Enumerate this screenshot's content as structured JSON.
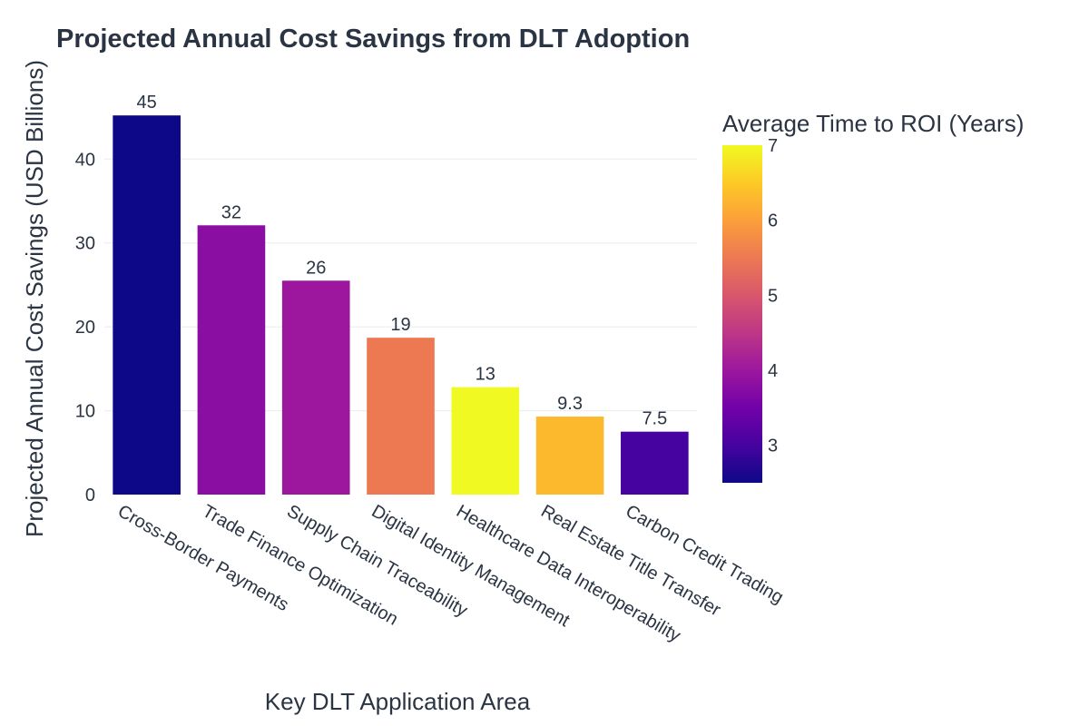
{
  "chart_data": {
    "type": "bar",
    "title": "Projected Annual Cost Savings from DLT Adoption",
    "xlabel": "Key DLT Application Area",
    "ylabel": "Projected Annual Cost Savings (USD Billions)",
    "categories": [
      "Cross-Border Payments",
      "Trade Finance Optimization",
      "Supply Chain Traceability",
      "Digital Identity Management",
      "Healthcare Data Interoperability",
      "Real Estate Title Transfer",
      "Carbon Credit Trading"
    ],
    "values": [
      45.2,
      32.1,
      25.5,
      18.7,
      12.8,
      9.3,
      7.5
    ],
    "value_labels": [
      "45",
      "32",
      "26",
      "19",
      "13",
      "9.3",
      "7.5"
    ],
    "color_values": [
      2.5,
      3.8,
      4.0,
      5.5,
      7.0,
      6.3,
      3.0
    ],
    "ylim": [
      0,
      47.6
    ],
    "yticks": [
      0,
      10,
      20,
      30,
      40
    ],
    "grid": true,
    "legend": "none",
    "colorbar": {
      "title": "Average Time to ROI (Years)",
      "range": [
        2.5,
        7.0
      ],
      "ticks": [
        3,
        4,
        5,
        6,
        7
      ],
      "colorscale": "plasma",
      "colors": [
        "#0d0887",
        "#46039f",
        "#7201a8",
        "#9c179e",
        "#bd3786",
        "#d8576b",
        "#ed7953",
        "#fb9f3a",
        "#fdca26",
        "#f0f921"
      ]
    }
  }
}
